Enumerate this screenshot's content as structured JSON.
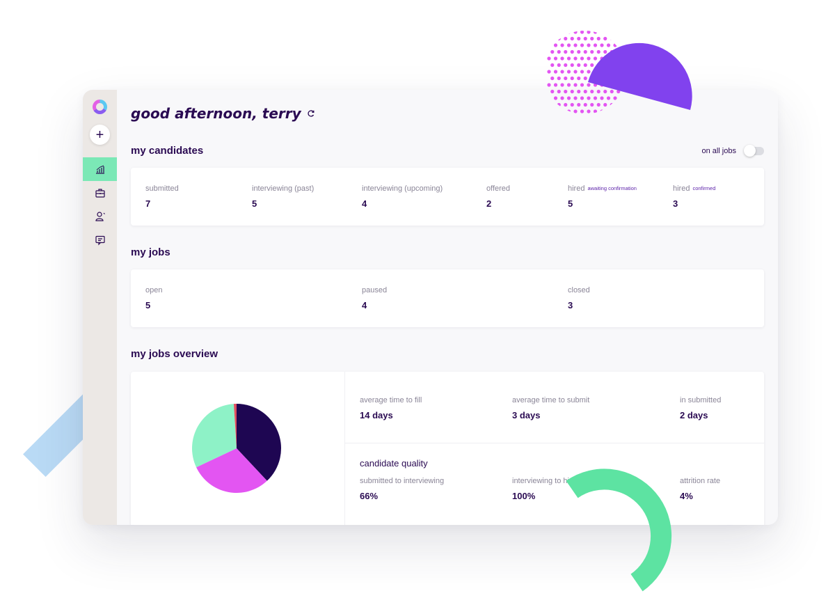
{
  "greeting": "good afternoon, terry",
  "candidates": {
    "title": "my candidates",
    "toggle_label": "on all jobs",
    "toggle_on": false,
    "stats": [
      {
        "label": "submitted",
        "note": "",
        "value": "7"
      },
      {
        "label": "interviewing (past)",
        "note": "",
        "value": "5"
      },
      {
        "label": "interviewing (upcoming)",
        "note": "",
        "value": "4"
      },
      {
        "label": "offered",
        "note": "",
        "value": "2"
      },
      {
        "label": "hired",
        "note": "awaiting confirmation",
        "value": "5"
      },
      {
        "label": "hired",
        "note": "confirmed",
        "value": "3"
      }
    ]
  },
  "jobs": {
    "title": "my jobs",
    "stats": [
      {
        "label": "open",
        "value": "5"
      },
      {
        "label": "paused",
        "value": "4"
      },
      {
        "label": "closed",
        "value": "3"
      }
    ]
  },
  "overview": {
    "title": "my jobs overview",
    "time_metrics": [
      {
        "label": "average time to fill",
        "value": "14 days"
      },
      {
        "label": "average time to submit",
        "value": "3 days"
      },
      {
        "label": "in submitted",
        "value": "2 days"
      }
    ],
    "quality_title": "candidate quality",
    "quality_metrics": [
      {
        "label": "submitted to interviewing",
        "value": "66%"
      },
      {
        "label": "interviewing to hi",
        "value": "100%"
      },
      {
        "label": "attrition rate",
        "value": "4%"
      }
    ]
  },
  "chart_data": {
    "type": "pie",
    "slices": [
      {
        "value": 38,
        "color": "#1e0652"
      },
      {
        "value": 30,
        "color": "#e355f2"
      },
      {
        "value": 31,
        "color": "#8ef2c7"
      },
      {
        "value": 1,
        "color": "#e04f5f"
      }
    ]
  },
  "colors": {
    "accent_green": "#7be8b6",
    "text_dark": "#2a0a52",
    "decoration_purple": "#8142ee",
    "decoration_pink": "#e355f2",
    "decoration_green": "#5de3a2",
    "decoration_blue": "#b9daf5"
  },
  "sidebar": {
    "icons": [
      "logo-icon",
      "add-icon",
      "dashboard-chart-icon",
      "briefcase-icon",
      "candidate-person-icon",
      "messages-icon"
    ]
  }
}
